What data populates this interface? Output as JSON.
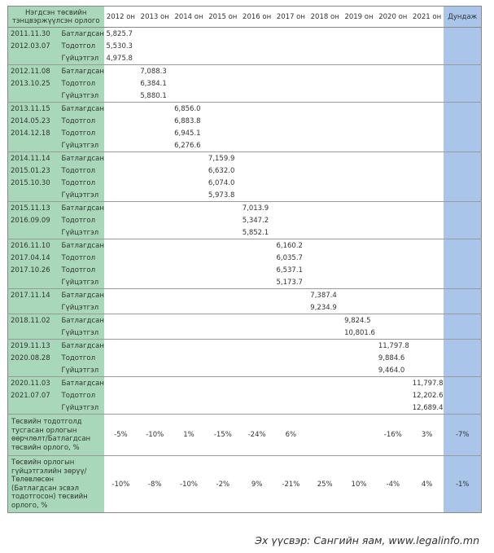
{
  "header": {
    "title": "Нэгдсэн төсвийн тэнцвэржүүлсэн орлого",
    "columns": [
      "2012 он",
      "2013 он",
      "2014 он",
      "2015 он",
      "2016 он",
      "2017 он",
      "2018 он",
      "2019 он",
      "2020 он",
      "2021 он"
    ],
    "average": "Дундаж"
  },
  "groups": [
    {
      "rows": [
        {
          "date": "2011.11.30",
          "type": "Батлагдсан",
          "value": "5,825.7"
        },
        {
          "date": "2012.03.07",
          "type": "Тодотгол",
          "value": "5,530.3"
        },
        {
          "type": "Гүйцэтгэл",
          "value": "4,975.8"
        }
      ]
    },
    {
      "rows": [
        {
          "date": "2012.11.08",
          "type": "Батлагдсан",
          "value": "7,088.3"
        },
        {
          "date": "2013.10.25",
          "type": "Тодотгол",
          "value": "6,384.1"
        },
        {
          "type": "Гүйцэтгэл",
          "value": "5,880.1"
        }
      ]
    },
    {
      "rows": [
        {
          "date": "2013.11.15",
          "type": "Батлагдсан",
          "value": "6,856.0"
        },
        {
          "date": "2014.05.23",
          "type": "Тодотгол",
          "value": "6,883.8"
        },
        {
          "date": "2014.12.18",
          "type": "Тодотгол",
          "value": "6,945.1"
        },
        {
          "type": "Гүйцэтгэл",
          "value": "6,276.6"
        }
      ]
    },
    {
      "rows": [
        {
          "date": "2014.11.14",
          "type": "Батлагдсан",
          "value": "7,159.9"
        },
        {
          "date": "2015.01.23",
          "type": "Тодотгол",
          "value": "6,632.0"
        },
        {
          "date": "2015.10.30",
          "type": "Тодотгол",
          "value": "6,074.0"
        },
        {
          "type": "Гүйцэтгэл",
          "value": "5,973.8"
        }
      ]
    },
    {
      "rows": [
        {
          "date": "2015.11.13",
          "type": "Батлагдсан",
          "value": "7,013.9"
        },
        {
          "date": "2016.09.09",
          "type": "Тодотгол",
          "value": "5,347.2"
        },
        {
          "type": "Гүйцэтгэл",
          "value": "5,852.1"
        }
      ]
    },
    {
      "rows": [
        {
          "date": "2016.11.10",
          "type": "Батлагдсан",
          "value": "6,160.2"
        },
        {
          "date": "2017.04.14",
          "type": "Тодотгол",
          "value": "6,035.7"
        },
        {
          "date": "2017.10.26",
          "type": "Тодотгол",
          "value": "6,537.1"
        },
        {
          "type": "Гүйцэтгэл",
          "value": "5,173.7"
        }
      ]
    },
    {
      "rows": [
        {
          "date": "2017.11.14",
          "type": "Батлагдсан",
          "value": "7,387.4"
        },
        {
          "type": "Гүйцэтгэл",
          "value": "9,234.9"
        }
      ]
    },
    {
      "rows": [
        {
          "date": "2018.11.02",
          "type": "Батлагдсан",
          "value": "9,824.5"
        },
        {
          "type": "Гүйцэтгэл",
          "value": "10,801.6"
        }
      ]
    },
    {
      "rows": [
        {
          "date": "2019.11.13",
          "type": "Батлагдсан",
          "value": "11,797.8"
        },
        {
          "date": "2020.08.28",
          "type": "Тодотгол",
          "value": "9,884.6"
        },
        {
          "type": "Гүйцэтгэл",
          "value": "9,464.0"
        }
      ]
    },
    {
      "rows": [
        {
          "date": "2020.11.03",
          "type": "Батлагдсан",
          "value": "11,797.8"
        },
        {
          "date": "2021.07.07",
          "type": "Тодотгол",
          "value": "12,202.6"
        },
        {
          "type": "Гүйцэтгэл",
          "value": "12,689.4"
        }
      ]
    }
  ],
  "summary": [
    {
      "label": "Төсвийн тодотголд тусгасан орлогын өөрчлөлт/Батлагдсан төсвийн орлого, %",
      "values": [
        "-5%",
        "-10%",
        "1%",
        "-15%",
        "-24%",
        "6%",
        null,
        null,
        "-16%",
        "3%"
      ],
      "average": "-7%"
    },
    {
      "label": "Төсвийн орлогын гүйцэтгэлийн зөрүү/ Төлөвлөсөн (Батлагдсан эсвэл тодотгосон) төсвийн орлого, %",
      "values": [
        "-10%",
        "-8%",
        "-10%",
        "-2%",
        "9%",
        "-21%",
        "25%",
        "10%",
        "-4%",
        "4%"
      ],
      "average": "-1%"
    }
  ],
  "source": "Эх үүсвэр: Сангийн яам, www.legalinfo.mn"
}
